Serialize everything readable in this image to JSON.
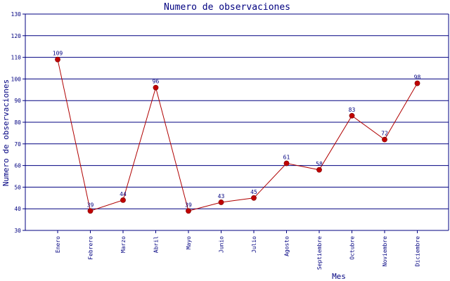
{
  "chart_data": {
    "type": "line",
    "title": "Numero de observaciones",
    "xlabel": "Mes",
    "ylabel": "Numero de observaciones",
    "categories": [
      "Enero",
      "Febrero",
      "Marzo",
      "Abril",
      "Mayo",
      "Junio",
      "Julio",
      "Agosto",
      "Septiembre",
      "Octubre",
      "Noviembre",
      "Diciembre"
    ],
    "series": [
      {
        "values": [
          109,
          39,
          44,
          96,
          39,
          43,
          45,
          61,
          58,
          83,
          72,
          98
        ]
      }
    ],
    "ylim": [
      30,
      130
    ],
    "yticks": [
      30,
      40,
      50,
      60,
      70,
      80,
      90,
      100,
      110,
      120,
      130
    ],
    "grid": true,
    "show_data_labels": true,
    "colors": {
      "line": "#b00000",
      "marker": "#c00000",
      "grid": "#000080",
      "axis_text": "#000080",
      "title": "#000080"
    }
  }
}
